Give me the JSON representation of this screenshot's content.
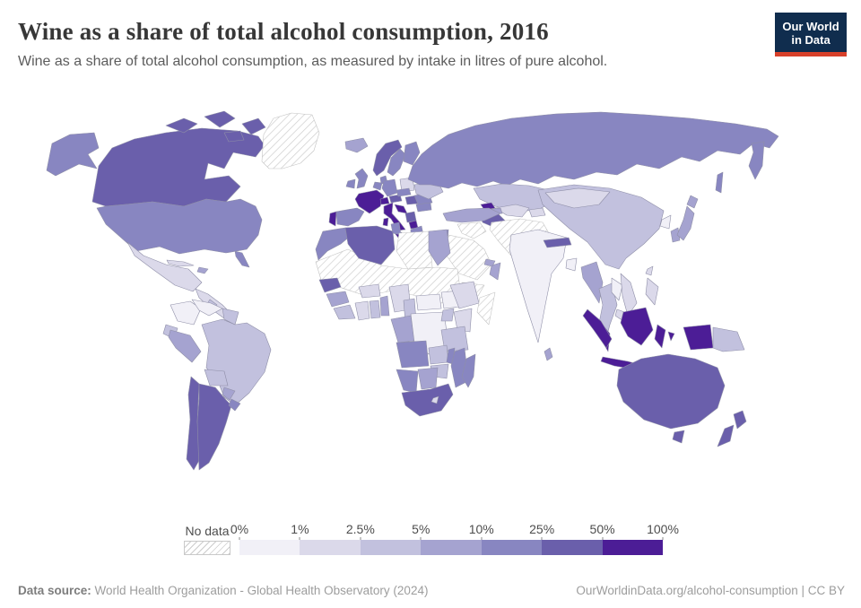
{
  "header": {
    "title": "Wine as a share of total alcohol consumption, 2016",
    "subtitle": "Wine as a share of total alcohol consumption, as measured by intake in litres of pure alcohol.",
    "logo": {
      "line1": "Our World",
      "line2": "in Data",
      "bg_color": "#102d4e",
      "accent_color": "#d8402a"
    }
  },
  "legend": {
    "no_data_label": "No data",
    "ticks": [
      "0%",
      "1%",
      "2.5%",
      "5%",
      "10%",
      "25%",
      "50%",
      "100%"
    ]
  },
  "footer": {
    "source_label": "Data source:",
    "source_text": " World Health Organization - Global Health Observatory (2024)",
    "right_text": "OurWorldinData.org/alcohol-consumption | CC BY"
  },
  "chart_data": {
    "type": "choropleth",
    "title": "Wine as a share of total alcohol consumption, 2016",
    "unit": "%",
    "projection": "world",
    "legend_position": "bottom",
    "scale_ticks": [
      "0%",
      "1%",
      "2.5%",
      "5%",
      "10%",
      "25%",
      "50%",
      "100%"
    ],
    "no_data": {
      "label": "No data",
      "style": "hatched"
    },
    "buckets": [
      {
        "id": "b0",
        "range": "0-1%",
        "color": "#f1f0f7"
      },
      {
        "id": "b1",
        "range": "1-2.5%",
        "color": "#dbd9ea"
      },
      {
        "id": "b2",
        "range": "2.5-5%",
        "color": "#c2c1de"
      },
      {
        "id": "b3",
        "range": "5-10%",
        "color": "#a5a3d0"
      },
      {
        "id": "b4",
        "range": "10-25%",
        "color": "#8886c1"
      },
      {
        "id": "b5",
        "range": "25-50%",
        "color": "#6a5fab"
      },
      {
        "id": "b6",
        "range": "50-100%",
        "color": "#4c1d96"
      }
    ],
    "countries": {
      "united_states": "b4",
      "canada": "b5",
      "greenland": "nodata",
      "mexico": "b1",
      "central_america": "b1",
      "nicaragua": "b2",
      "cuba": "b1",
      "hispaniola": "b3",
      "colombia": "b0",
      "venezuela": "b0",
      "guianas": "b2",
      "brazil": "b2",
      "ecuador": "b2",
      "peru": "b3",
      "bolivia": "b2",
      "paraguay": "b3",
      "chile": "b5",
      "argentina": "b5",
      "uruguay": "b4",
      "iceland": "b3",
      "united_kingdom": "b4",
      "ireland": "b4",
      "norway": "b5",
      "sweden": "b4",
      "finland": "b4",
      "denmark": "b4",
      "baltics": "b1",
      "belarus": "b2",
      "poland": "b1",
      "germany": "b4",
      "benelux": "b4",
      "france": "b6",
      "switzerland": "b6",
      "austria": "b5",
      "czech_slovakia": "b4",
      "hungary": "b5",
      "portugal": "b6",
      "spain": "b4",
      "italy": "b6",
      "croatia": "b6",
      "serbia": "b5",
      "albania_macedonia": "b6",
      "greece": "b4",
      "romania": "b4",
      "bulgaria": "b4",
      "ukraine": "b2",
      "russia": "b4",
      "kazakhstan": "b2",
      "uzbekistan": "b1",
      "turkmenistan": "b5",
      "kyrgyzstan_tajikistan": "b1",
      "georgia": "b6",
      "azerbaijan": "b3",
      "turkey": "b3",
      "iran_afghanistan_pakistan": "nodata",
      "iraq_syria": "nodata",
      "saudi_arabia": "nodata",
      "yemen": "nodata",
      "oman": "b3",
      "uae": "b3",
      "israel_jordan": "b4",
      "india": "b0",
      "nepal": "b5",
      "bangladesh": "b0",
      "sri_lanka": "b3",
      "china": "b2",
      "mongolia": "b1",
      "north_korea": "b0",
      "south_korea": "b3",
      "japan": "b3",
      "taiwan": "b1",
      "myanmar": "b3",
      "thailand": "b2",
      "laos": "b0",
      "vietnam": "b1",
      "cambodia": "b1",
      "malaysia": "b6",
      "philippines": "b1",
      "indonesia": "b6",
      "papua_new_guinea": "b2",
      "australia": "b5",
      "new_zealand": "b5",
      "morocco": "b4",
      "algeria": "b5",
      "tunisia": "b4",
      "libya": "nodata",
      "egypt": "b3",
      "sahel": "nodata",
      "senegal": "b5",
      "guinea": "b3",
      "sierra_leone_liberia": "b2",
      "ivory_coast": "b1",
      "ghana": "b2",
      "togo_benin": "b3",
      "burkina_faso": "b1",
      "nigeria": "b1",
      "cameroon": "b2",
      "central_african_republic": "b0",
      "gabon_congo": "b3",
      "dr_congo": "b0",
      "south_sudan": "b0",
      "ethiopia": "b1",
      "somalia": "nodata",
      "kenya": "b1",
      "uganda": "b2",
      "tanzania": "b2",
      "angola": "b4",
      "zambia": "b2",
      "malawi": "b4",
      "mozambique": "b4",
      "zimbabwe": "b2",
      "botswana": "b3",
      "namibia": "b4",
      "south_africa": "b5",
      "lesotho": "b1",
      "madagascar": "b4"
    }
  }
}
